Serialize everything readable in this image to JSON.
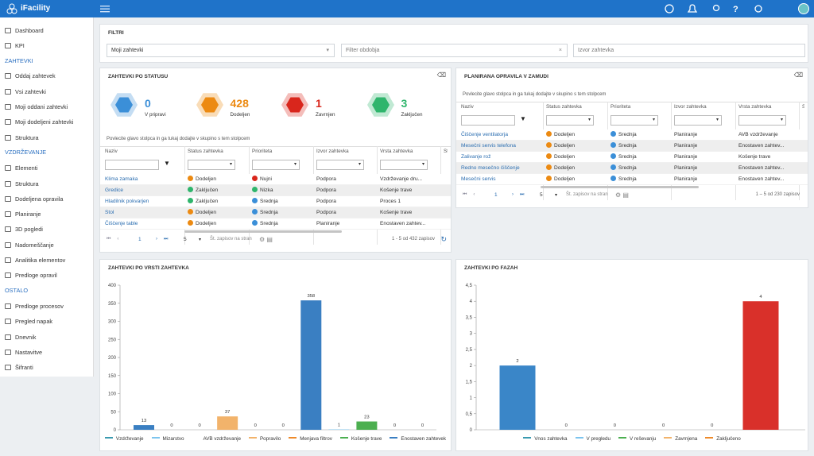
{
  "header": {
    "app_name": "iFacility"
  },
  "sidebar": {
    "items": [
      {
        "label": "Dashboard"
      },
      {
        "label": "KPI"
      },
      {
        "section": "ZAHTEVKI"
      },
      {
        "label": "Oddaj zahtevek"
      },
      {
        "label": "Vsi zahtevki"
      },
      {
        "label": "Moji oddani zahtevki"
      },
      {
        "label": "Moji dodeljeni zahtevki"
      },
      {
        "label": "Struktura"
      },
      {
        "section": "VZDRŽEVANJE"
      },
      {
        "label": "Elementi"
      },
      {
        "label": "Struktura"
      },
      {
        "label": "Dodeljena opravila"
      },
      {
        "label": "Planiranje"
      },
      {
        "label": "3D pogledi"
      },
      {
        "label": "Nadomeščanje"
      },
      {
        "label": "Analitika elementov"
      },
      {
        "label": "Predloge opravil"
      },
      {
        "section": "OSTALO"
      },
      {
        "label": "Predloge procesov"
      },
      {
        "label": "Pregled napak"
      },
      {
        "label": "Dnevnik"
      },
      {
        "label": "Nastavitve"
      },
      {
        "label": "Šifranti"
      }
    ]
  },
  "filters": {
    "title": "FILTRI",
    "fields": [
      "Moji zahtevki",
      "Filter obdobja",
      "Izvor zahtevka"
    ]
  },
  "status_panel": {
    "title": "ZAHTEVKI PO STATUSU",
    "statuses": [
      {
        "count": 0,
        "label": "V pripravi",
        "color": "#3b8fd8"
      },
      {
        "count": 428,
        "label": "Dodeljen",
        "color": "#ec8a12"
      },
      {
        "count": 1,
        "label": "Zavrnjen",
        "color": "#d9261c"
      },
      {
        "count": 3,
        "label": "Zaključen",
        "color": "#2fb56c"
      }
    ],
    "group_hint": "Povlecite glavo stolpca in ga tukaj dodajte v skupino s tem stolpcem",
    "columns": [
      "Naziv",
      "Status zahtevka",
      "Prioriteta",
      "Izvor zahtevka",
      "Vrsta zahtevka",
      "St"
    ],
    "rows": [
      {
        "cells": [
          "Klima zamaka",
          "Dodeljen",
          "Nujni",
          "Podpora",
          "Vzdrževanje dru..."
        ],
        "status_color": "#ec8a12",
        "priority_color": "#d9261c"
      },
      {
        "cells": [
          "Gredice",
          "Zaključen",
          "Nizka",
          "Podpora",
          "Košenje trave"
        ],
        "status_color": "#2fb56c",
        "priority_color": "#2fb56c"
      },
      {
        "cells": [
          "Hladilnik pokvarjen",
          "Zaključen",
          "Srednja",
          "Podpora",
          "Proces 1"
        ],
        "status_color": "#2fb56c",
        "priority_color": "#3b8fd8"
      },
      {
        "cells": [
          "Stol",
          "Dodeljen",
          "Srednja",
          "Podpora",
          "Košenje trave"
        ],
        "status_color": "#ec8a12",
        "priority_color": "#3b8fd8"
      },
      {
        "cells": [
          "Čiščenje table",
          "Dodeljen",
          "Srednja",
          "Planiranje",
          "Enostaven zahtev..."
        ],
        "status_color": "#ec8a12",
        "priority_color": "#3b8fd8"
      }
    ],
    "pager": {
      "page": 1,
      "page_size": 5,
      "page_size_label": "Št. zapisov na stran",
      "summary": "1 - 5 od 432 zapisov"
    }
  },
  "planned_panel": {
    "title": "PLANIRANA OPRAVILA V ZAMUDI",
    "group_hint": "Povlecite glavo stolpca in ga tukaj dodajte v skupino s tem stolpcem",
    "columns": [
      "Naziv",
      "Status zahtevka",
      "Prioriteta",
      "Izvor zahtevka",
      "Vrsta zahtevka",
      "St"
    ],
    "rows": [
      {
        "cells": [
          "Čiščenje ventilatorja",
          "Dodeljen",
          "Srednja",
          "Planiranje",
          "AVB vzdrževanje"
        ],
        "status_color": "#ec8a12",
        "priority_color": "#3b8fd8"
      },
      {
        "cells": [
          "Mesečni servis telefona",
          "Dodeljen",
          "Srednja",
          "Planiranje",
          "Enostaven zahtev..."
        ],
        "status_color": "#ec8a12",
        "priority_color": "#3b8fd8"
      },
      {
        "cells": [
          "Zalivanje rož",
          "Dodeljen",
          "Srednja",
          "Planiranje",
          "Košenje trave"
        ],
        "status_color": "#ec8a12",
        "priority_color": "#3b8fd8"
      },
      {
        "cells": [
          "Redno mesečno čiščenje",
          "Dodeljen",
          "Srednja",
          "Planiranje",
          "Enostaven zahtev..."
        ],
        "status_color": "#ec8a12",
        "priority_color": "#3b8fd8"
      },
      {
        "cells": [
          "Mesečni servis",
          "Dodeljen",
          "Srednja",
          "Planiranje",
          "Enostaven zahtev..."
        ],
        "status_color": "#ec8a12",
        "priority_color": "#3b8fd8"
      }
    ],
    "pager": {
      "page": 1,
      "page_size": 5,
      "page_size_label": "Št. zapisov na stran",
      "summary": "1 – 5 od 230 zapisov"
    }
  },
  "charts": [
    {
      "type": "bar",
      "title": "ZAHTEVKI PO VRSTI ZAHTEVKA",
      "values": [
        13,
        0,
        0,
        37,
        0,
        0,
        358,
        1,
        23,
        0,
        0
      ],
      "colors": [
        "#3a7fc2",
        "#7cc4ee",
        "#999999",
        "#f2b36b",
        "#ee8a2a",
        "#4caf50",
        "#3a7fc2",
        "#7cc4ee",
        "#4caf50",
        "#ee8a2a",
        "#3a7fc2"
      ],
      "ylim": [
        0,
        400
      ],
      "yticks": [
        0,
        50,
        100,
        150,
        200,
        250,
        300,
        350,
        400
      ],
      "grid": false,
      "legend": [
        {
          "name": "Vzdrževanje",
          "color": "#3a9ab0"
        },
        {
          "name": "Mizarstvo",
          "color": "#7cc4ee"
        },
        {
          "name": "AVB vzdrževanje",
          "color": "#ffffff"
        },
        {
          "name": "Popravilo",
          "color": "#f2b36b"
        },
        {
          "name": "Menjava filtrov",
          "color": "#ee8a2a"
        },
        {
          "name": "Košenje trave",
          "color": "#4caf50"
        },
        {
          "name": "Enostaven zahtevek",
          "color": "#3a7fc2"
        }
      ]
    },
    {
      "type": "bar",
      "title": "ZAHTEVKI PO FAZAH",
      "values": [
        2,
        0,
        0,
        0,
        0,
        4
      ],
      "colors": [
        "#3a86c8",
        "#7cc4ee",
        "#4caf50",
        "#f2b36b",
        "#ee8a2a",
        "#d9302a"
      ],
      "ylim": [
        0,
        4.5
      ],
      "yticks": [
        0,
        {
          "value": 0.5,
          "label": "0,5"
        },
        1,
        {
          "value": 1.5,
          "label": "1,5"
        },
        2,
        {
          "value": 2.5,
          "label": "2,5"
        },
        3,
        {
          "value": 3.5,
          "label": "3,5"
        },
        4,
        {
          "value": 4.5,
          "label": "4,5"
        }
      ],
      "grid": false,
      "legend": [
        {
          "name": "Vnos zahtevka",
          "color": "#3a9ab0"
        },
        {
          "name": "V pregledu",
          "color": "#7cc4ee"
        },
        {
          "name": "V reševanju",
          "color": "#4caf50"
        },
        {
          "name": "Zavrnjena",
          "color": "#f2b36b"
        },
        {
          "name": "Zaključeno",
          "color": "#ee8a2a"
        }
      ]
    }
  ]
}
